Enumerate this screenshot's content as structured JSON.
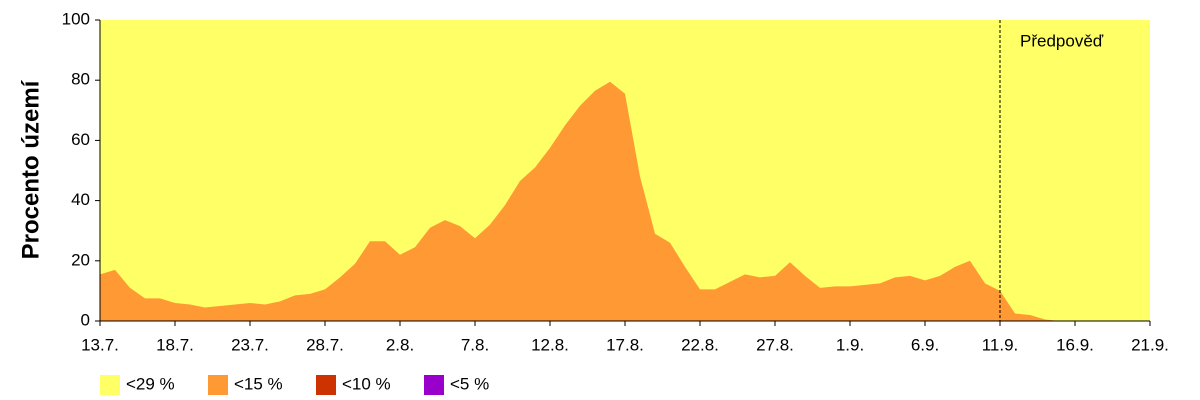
{
  "chart_data": {
    "type": "area",
    "y_label": "Procento území",
    "categories": [
      "13.7.",
      null,
      null,
      null,
      null,
      "18.7.",
      null,
      null,
      null,
      null,
      "23.7.",
      null,
      null,
      null,
      null,
      "28.7.",
      null,
      null,
      null,
      null,
      "2.8.",
      null,
      null,
      null,
      null,
      "7.8.",
      null,
      null,
      null,
      null,
      "12.8.",
      null,
      null,
      null,
      null,
      "17.8.",
      null,
      null,
      null,
      null,
      "22.8.",
      null,
      null,
      null,
      null,
      "27.8.",
      null,
      null,
      null,
      null,
      "1.9.",
      null,
      null,
      null,
      null,
      "6.9.",
      null,
      null,
      null,
      null,
      "11.9.",
      null,
      null,
      null,
      null,
      "16.9.",
      null,
      null,
      null,
      null,
      "21.9."
    ],
    "series": [
      {
        "name": "<29 %",
        "color": "#ffff66",
        "values": [
          100,
          100,
          100,
          100,
          100,
          100,
          100,
          100,
          100,
          100,
          100,
          100,
          100,
          100,
          100,
          100,
          100,
          100,
          100,
          100,
          100,
          100,
          100,
          100,
          100,
          100,
          100,
          100,
          100,
          100,
          100,
          100,
          100,
          100,
          100,
          100,
          100,
          100,
          100,
          100,
          100,
          100,
          100,
          100,
          100,
          100,
          100,
          100,
          100,
          100,
          100,
          100,
          100,
          100,
          100,
          100,
          100,
          100,
          100,
          100,
          100,
          100,
          100,
          100,
          100,
          100,
          100,
          100,
          100,
          100,
          100
        ]
      },
      {
        "name": "<15 %",
        "color": "#ff9933",
        "values": [
          15.5,
          17,
          11,
          7.5,
          7.5,
          6,
          5.5,
          4.5,
          5,
          5.5,
          6,
          5.5,
          6.5,
          8.5,
          9,
          10.5,
          14.5,
          19,
          26.5,
          26.5,
          22,
          24.5,
          31,
          33.5,
          31.5,
          27.5,
          32,
          38.5,
          46.5,
          51,
          57.5,
          65,
          71.5,
          76.5,
          79.5,
          75.5,
          48,
          29,
          26,
          18,
          10.5,
          10.5,
          13,
          15.5,
          14.5,
          15,
          19.5,
          15,
          11,
          11.5,
          11.5,
          12,
          12.5,
          14.5,
          15,
          13.5,
          15,
          18,
          20,
          12.5,
          10,
          2.5,
          2,
          0.5,
          0,
          0,
          0,
          0,
          0,
          0,
          0
        ]
      },
      {
        "name": "<10 %",
        "color": "#cc3300",
        "values": [
          0,
          0,
          0,
          0,
          0,
          0,
          0,
          0,
          0,
          0,
          0,
          0,
          0,
          0,
          0,
          0,
          0,
          0,
          0,
          0,
          0,
          0,
          0,
          0,
          0,
          0,
          0,
          0,
          0,
          0,
          0,
          0,
          0,
          0,
          0,
          0,
          0,
          0,
          0,
          0,
          0,
          0,
          0,
          0,
          0,
          0,
          0,
          0,
          0,
          0,
          0,
          0,
          0,
          0,
          0,
          0,
          0,
          0,
          0,
          0,
          0,
          0,
          0,
          0,
          0,
          0,
          0,
          0,
          0,
          0,
          0
        ]
      },
      {
        "name": "<5 %",
        "color": "#9900cc",
        "values": [
          0,
          0,
          0,
          0,
          0,
          0,
          0,
          0,
          0,
          0,
          0,
          0,
          0,
          0,
          0,
          0,
          0,
          0,
          0,
          0,
          0,
          0,
          0,
          0,
          0,
          0,
          0,
          0,
          0,
          0,
          0,
          0,
          0,
          0,
          0,
          0,
          0,
          0,
          0,
          0,
          0,
          0,
          0,
          0,
          0,
          0,
          0,
          0,
          0,
          0,
          0,
          0,
          0,
          0,
          0,
          0,
          0,
          0,
          0,
          0,
          0,
          0,
          0,
          0,
          0,
          0,
          0,
          0,
          0,
          0,
          0
        ]
      }
    ],
    "annotation": {
      "text": "Předpověď",
      "x": "11.9."
    },
    "ylim": [
      0,
      100
    ],
    "yticks": [
      0,
      20,
      40,
      60,
      80,
      100
    ]
  }
}
